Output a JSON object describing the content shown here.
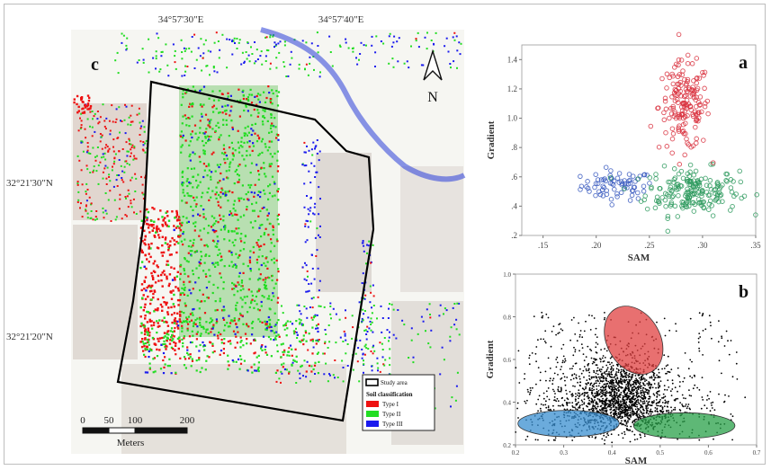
{
  "map": {
    "panel_letter": "c",
    "lon_labels": [
      "34°57'30\"E",
      "34°57'40\"E"
    ],
    "lat_labels": [
      "32°21'30\"N",
      "32°21'20\"N"
    ],
    "north_label": "N",
    "scale": {
      "ticks": [
        "0",
        "50",
        "100",
        "200"
      ],
      "unit": "Meters"
    },
    "legend": {
      "study_area": "Study area",
      "title": "Soil classification",
      "items": [
        {
          "label": "Type I",
          "color": "#ee1111"
        },
        {
          "label": "Type II",
          "color": "#22dd22"
        },
        {
          "label": "Type III",
          "color": "#1a1aee"
        }
      ]
    }
  },
  "chart_data": [
    {
      "panel": "a",
      "type": "scatter",
      "xlabel": "SAM",
      "ylabel": "Gradient",
      "xlim": [
        0.13,
        0.35
      ],
      "ylim": [
        0.2,
        1.5
      ],
      "xticks": [
        ".15",
        ".20",
        ".25",
        ".30",
        ".35"
      ],
      "yticks": [
        ".2",
        ".4",
        ".6",
        ".8",
        "1.0",
        "1.2",
        "1.4"
      ],
      "series": [
        {
          "color": "#3a5bbf",
          "cx": 0.22,
          "cy": 0.54,
          "sx": 0.017,
          "sy": 0.05,
          "n": 75
        },
        {
          "color": "#2e9a5e",
          "cx": 0.29,
          "cy": 0.5,
          "sx": 0.022,
          "sy": 0.08,
          "n": 190
        },
        {
          "color": "#d9333f",
          "cx": 0.283,
          "cy": 1.08,
          "sx": 0.012,
          "sy": 0.15,
          "n": 170
        }
      ]
    },
    {
      "panel": "b",
      "type": "scatter",
      "xlabel": "SAM",
      "ylabel": "Gradient",
      "xlim": [
        0.2,
        0.7
      ],
      "ylim": [
        0.2,
        1.0
      ],
      "xticks": [
        "0.2",
        "0.3",
        "0.4",
        "0.5",
        "0.6",
        "0.7"
      ],
      "yticks": [
        "0.2",
        "0.4",
        "0.6",
        "0.8",
        "1.0"
      ],
      "ellipses": [
        {
          "color": "#e04040",
          "cx": 0.445,
          "cy": 0.69,
          "rx": 0.055,
          "ry": 0.17,
          "rotation": -30
        },
        {
          "color": "#3a8fd0",
          "cx": 0.31,
          "cy": 0.3,
          "rx": 0.105,
          "ry": 0.062,
          "rotation": 0
        },
        {
          "color": "#28a048",
          "cx": 0.55,
          "cy": 0.29,
          "rx": 0.105,
          "ry": 0.06,
          "rotation": 0
        }
      ],
      "n_background_points": 2200
    }
  ]
}
